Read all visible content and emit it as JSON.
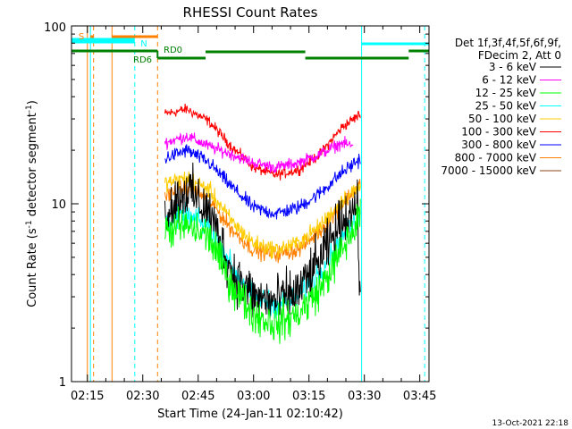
{
  "chart_data": {
    "type": "line",
    "title": "RHESSI Count Rates",
    "xlabel": "Start Time (24-Jan-11 02:10:42)",
    "ylabel": "Count Rate (s⁻¹ detector segment⁻¹)",
    "ylabel_main": "Count Rate (s",
    "ylabel_mid": " detector segment",
    "ylabel_end": ")",
    "ylabel_sup": "-1",
    "y_scale": "log",
    "ylim": [
      1,
      100
    ],
    "x_range": [
      "02:10:42",
      "03:47:30"
    ],
    "x_ticks": [
      "02:15",
      "02:30",
      "02:45",
      "03:00",
      "03:15",
      "03:30",
      "03:45"
    ],
    "y_tick_labels": [
      "1",
      "10",
      "100"
    ],
    "legend_header": [
      "Det 1f,3f,4f,5f,6f,9f,",
      "FDecim 2, Att 0"
    ],
    "legend_placement": "right",
    "timestamp": "13-Oct-2021 22:18",
    "series": [
      {
        "name": "3 - 6 keV",
        "color": "#000000",
        "x": [
          "02:36",
          "02:42",
          "02:48",
          "02:54",
          "03:00",
          "03:06",
          "03:12",
          "03:18",
          "03:24",
          "03:28",
          "03:29"
        ],
        "values": [
          9,
          12,
          9,
          4.2,
          3.0,
          2.8,
          3.2,
          4.8,
          8,
          10,
          2.7
        ]
      },
      {
        "name": "6 - 12 keV",
        "color": "#ff00ff",
        "x": [
          "02:36",
          "02:42",
          "02:48",
          "02:54",
          "03:00",
          "03:06",
          "03:12",
          "03:18",
          "03:24",
          "03:27"
        ],
        "values": [
          22,
          24,
          21,
          19,
          17,
          16,
          17,
          19,
          22,
          21
        ]
      },
      {
        "name": "12 - 25 keV",
        "color": "#00ff00",
        "x": [
          "02:36",
          "02:42",
          "02:48",
          "02:54",
          "03:00",
          "03:06",
          "03:12",
          "03:18",
          "03:24",
          "03:29"
        ],
        "values": [
          7,
          7.5,
          6.5,
          3.5,
          2.4,
          2.1,
          2.4,
          3.3,
          5.5,
          8.5
        ]
      },
      {
        "name": "25 - 50 keV",
        "color": "#00ffff",
        "x": [
          "02:36",
          "02:42",
          "02:48",
          "02:54",
          "03:00",
          "03:06",
          "03:12",
          "03:18",
          "03:24",
          "03:29"
        ],
        "values": [
          8,
          8.5,
          7.5,
          4.5,
          3.0,
          2.7,
          3.0,
          4.2,
          6.5,
          8.7
        ]
      },
      {
        "name": "50 - 100 keV",
        "color": "#ffcc00",
        "x": [
          "02:36",
          "02:42",
          "02:48",
          "02:54",
          "03:00",
          "03:06",
          "03:12",
          "03:18",
          "03:24",
          "03:29"
        ],
        "values": [
          13,
          14,
          12,
          8,
          6,
          5.5,
          6,
          7.5,
          10.5,
          12.5
        ]
      },
      {
        "name": "100 - 300 keV",
        "color": "#ff0000",
        "x": [
          "02:36",
          "02:42",
          "02:48",
          "02:54",
          "03:00",
          "03:06",
          "03:12",
          "03:18",
          "03:24",
          "03:29"
        ],
        "values": [
          32,
          34,
          29,
          21,
          16,
          14.5,
          15.5,
          19,
          27,
          32
        ]
      },
      {
        "name": "300 - 800 keV",
        "color": "#0000ff",
        "x": [
          "02:36",
          "02:42",
          "02:48",
          "02:54",
          "03:00",
          "03:06",
          "03:12",
          "03:18",
          "03:24",
          "03:29"
        ],
        "values": [
          18,
          20,
          17,
          12.5,
          9.5,
          8.8,
          9.5,
          11.5,
          15,
          18
        ]
      },
      {
        "name": "800 - 7000 keV",
        "color": "#ff8000",
        "x": [
          "02:36",
          "02:42",
          "02:48",
          "02:54",
          "03:00",
          "03:06",
          "03:12",
          "03:18",
          "03:24",
          "03:29"
        ],
        "values": [
          11,
          12.5,
          10.5,
          7.2,
          5.5,
          5.2,
          5.5,
          7,
          10,
          13
        ]
      },
      {
        "name": "7000 - 15000 keV",
        "color": "#8b4513",
        "x": [],
        "values": []
      }
    ],
    "annotations": [
      {
        "text": "S",
        "color": "#ff8000"
      },
      {
        "text": "N",
        "color": "#00ffff"
      },
      {
        "text": "RD0",
        "color": "#008000"
      },
      {
        "text": "RD6",
        "color": "#008000"
      }
    ]
  }
}
